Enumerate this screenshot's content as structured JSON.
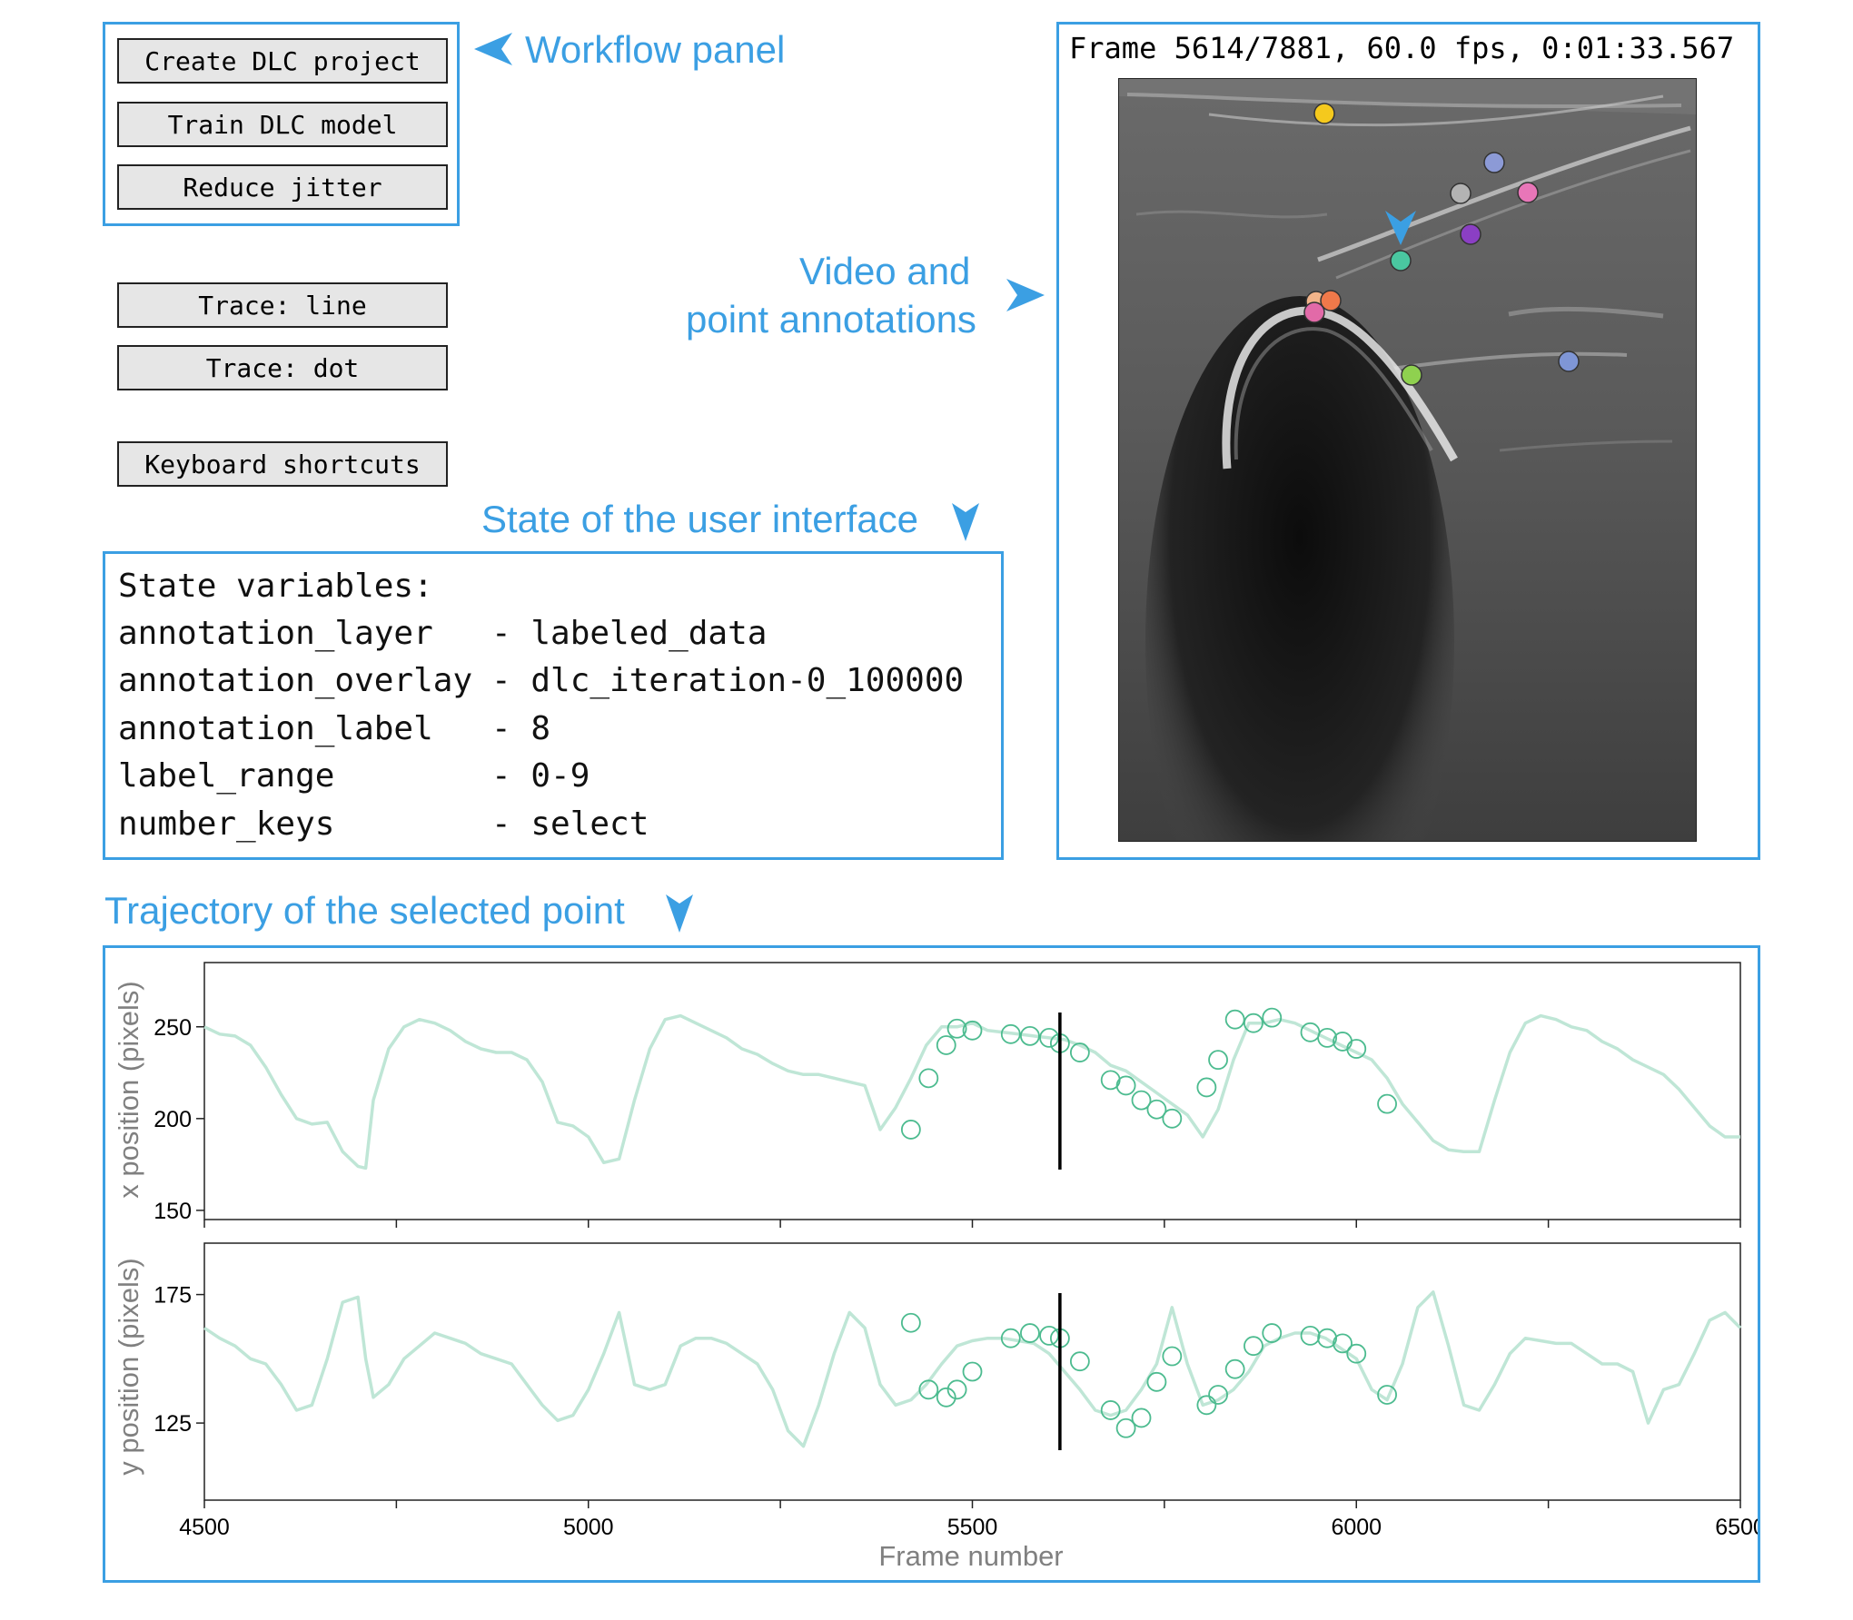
{
  "workflow_panel": {
    "callout": "Workflow panel",
    "buttons": [
      "Create DLC project",
      "Train DLC model",
      "Reduce jitter"
    ]
  },
  "trace_buttons": [
    "Trace: line",
    "Trace: dot"
  ],
  "shortcuts_button": "Keyboard shortcuts",
  "state_panel": {
    "callout": "State of the user interface",
    "title": "State variables:",
    "rows": [
      {
        "name": "annotation_layer  ",
        "value": "- labeled_data"
      },
      {
        "name": "annotation_overlay",
        "value": "- dlc_iteration-0_100000"
      },
      {
        "name": "annotation_label  ",
        "value": "- 8"
      },
      {
        "name": "label_range       ",
        "value": "- 0-9"
      },
      {
        "name": "number_keys       ",
        "value": "- select"
      }
    ]
  },
  "video_panel": {
    "callout_line1": "Video and",
    "callout_line2": "point annotations",
    "frame_info": "Frame 5614/7881, 60.0 fps, 0:01:33.567",
    "points": [
      {
        "color": "#f5c91d"
      },
      {
        "color": "#8c9ad6"
      },
      {
        "color": "#b3b3b3"
      },
      {
        "color": "#e876b8"
      },
      {
        "color": "#8b3fc4"
      },
      {
        "color": "#4ac7a0"
      },
      {
        "color": "#f2b48a"
      },
      {
        "color": "#f0794a"
      },
      {
        "color": "#e26aa8"
      },
      {
        "color": "#8fd14f"
      },
      {
        "color": "#7f96d6"
      }
    ]
  },
  "trajectory_panel": {
    "callout": "Trajectory of the selected point"
  },
  "colors": {
    "accent": "#3b9fe3",
    "trace": "#bfe6d6",
    "marker": "#4cbb8f"
  },
  "chart_data": [
    {
      "type": "line",
      "ylabel": "x position (pixels)",
      "xlim": [
        4500,
        6500
      ],
      "ylim": [
        145,
        285
      ],
      "yticks": [
        150,
        200,
        250
      ],
      "current_frame": 5614,
      "line_x": [
        4500,
        4520,
        4540,
        4560,
        4580,
        4600,
        4620,
        4640,
        4660,
        4680,
        4700,
        4710,
        4720,
        4740,
        4760,
        4780,
        4800,
        4820,
        4840,
        4860,
        4880,
        4900,
        4920,
        4940,
        4960,
        4980,
        5000,
        5020,
        5040,
        5060,
        5080,
        5100,
        5120,
        5140,
        5160,
        5180,
        5200,
        5220,
        5240,
        5260,
        5280,
        5300,
        5320,
        5340,
        5360,
        5380,
        5400,
        5420,
        5440,
        5460,
        5480,
        5500,
        5520,
        5540,
        5560,
        5580,
        5600,
        5620,
        5640,
        5660,
        5680,
        5700,
        5720,
        5740,
        5760,
        5780,
        5800,
        5820,
        5840,
        5860,
        5880,
        5900,
        5920,
        5940,
        5960,
        5980,
        6000,
        6020,
        6040,
        6060,
        6080,
        6100,
        6120,
        6140,
        6160,
        6180,
        6200,
        6220,
        6240,
        6260,
        6280,
        6300,
        6320,
        6340,
        6360,
        6380,
        6400,
        6420,
        6440,
        6460,
        6480,
        6500
      ],
      "line_y": [
        250,
        246,
        245,
        240,
        228,
        213,
        200,
        197,
        198,
        182,
        174,
        173,
        210,
        238,
        250,
        254,
        252,
        248,
        242,
        238,
        236,
        236,
        232,
        220,
        198,
        196,
        190,
        176,
        178,
        210,
        238,
        254,
        256,
        252,
        248,
        244,
        238,
        235,
        230,
        226,
        224,
        224,
        222,
        220,
        218,
        194,
        206,
        222,
        240,
        250,
        250,
        252,
        248,
        247,
        246,
        245,
        244,
        243,
        240,
        236,
        229,
        226,
        220,
        214,
        208,
        202,
        190,
        205,
        232,
        252,
        252,
        254,
        252,
        248,
        244,
        240,
        236,
        232,
        222,
        208,
        198,
        188,
        183,
        182,
        182,
        210,
        236,
        252,
        256,
        254,
        250,
        248,
        242,
        238,
        232,
        228,
        224,
        216,
        206,
        196,
        190,
        190
      ],
      "markers_x": [
        5420,
        5443,
        5466,
        5480,
        5500,
        5550,
        5575,
        5600,
        5614,
        5640,
        5680,
        5700,
        5720,
        5740,
        5760,
        5805,
        5820,
        5842,
        5866,
        5890,
        5940,
        5962,
        5982,
        6000,
        6040
      ],
      "markers_y": [
        194,
        222,
        240,
        249,
        248,
        246,
        245,
        244,
        241,
        236,
        221,
        218,
        210,
        205,
        200,
        217,
        232,
        254,
        252,
        255,
        247,
        244,
        242,
        238,
        208
      ]
    },
    {
      "type": "line",
      "ylabel": "y position (pixels)",
      "xlim": [
        4500,
        6500
      ],
      "ylim": [
        95,
        195
      ],
      "yticks": [
        125,
        175
      ],
      "xticks": [
        4500,
        5000,
        5500,
        6000,
        6500
      ],
      "xlabel": "Frame number",
      "current_frame": 5614,
      "line_x": [
        4500,
        4520,
        4540,
        4560,
        4580,
        4600,
        4620,
        4640,
        4660,
        4680,
        4700,
        4710,
        4720,
        4740,
        4760,
        4780,
        4800,
        4820,
        4840,
        4860,
        4880,
        4900,
        4920,
        4940,
        4960,
        4980,
        5000,
        5020,
        5040,
        5060,
        5080,
        5100,
        5120,
        5140,
        5160,
        5180,
        5200,
        5220,
        5240,
        5260,
        5280,
        5300,
        5320,
        5340,
        5360,
        5380,
        5400,
        5420,
        5440,
        5460,
        5480,
        5500,
        5520,
        5540,
        5560,
        5580,
        5600,
        5620,
        5640,
        5660,
        5680,
        5700,
        5720,
        5740,
        5760,
        5780,
        5800,
        5820,
        5840,
        5860,
        5880,
        5900,
        5920,
        5940,
        5960,
        5980,
        6000,
        6020,
        6040,
        6060,
        6080,
        6100,
        6120,
        6140,
        6160,
        6180,
        6200,
        6220,
        6240,
        6260,
        6280,
        6300,
        6320,
        6340,
        6360,
        6380,
        6400,
        6420,
        6440,
        6460,
        6480,
        6500
      ],
      "line_y": [
        162,
        158,
        155,
        150,
        148,
        140,
        130,
        132,
        150,
        172,
        174,
        150,
        135,
        140,
        150,
        155,
        160,
        158,
        156,
        152,
        150,
        148,
        140,
        132,
        126,
        128,
        138,
        152,
        168,
        140,
        138,
        140,
        155,
        158,
        158,
        156,
        152,
        148,
        138,
        122,
        116,
        132,
        152,
        168,
        162,
        140,
        132,
        134,
        140,
        148,
        155,
        157,
        158,
        158,
        157,
        156,
        152,
        145,
        138,
        130,
        128,
        130,
        138,
        148,
        170,
        148,
        132,
        134,
        138,
        145,
        155,
        158,
        160,
        160,
        158,
        154,
        150,
        138,
        134,
        148,
        170,
        176,
        155,
        132,
        130,
        140,
        152,
        158,
        157,
        156,
        156,
        152,
        148,
        148,
        145,
        125,
        138,
        140,
        152,
        165,
        168,
        162
      ],
      "markers_x": [
        5420,
        5443,
        5466,
        5480,
        5500,
        5550,
        5575,
        5600,
        5614,
        5640,
        5680,
        5700,
        5720,
        5740,
        5760,
        5805,
        5820,
        5842,
        5866,
        5890,
        5940,
        5962,
        5982,
        6000,
        6040
      ],
      "markers_y": [
        164,
        138,
        135,
        138,
        145,
        158,
        160,
        159,
        158,
        149,
        130,
        123,
        127,
        141,
        151,
        132,
        136,
        146,
        155,
        160,
        159,
        158,
        156,
        152,
        136
      ]
    }
  ]
}
